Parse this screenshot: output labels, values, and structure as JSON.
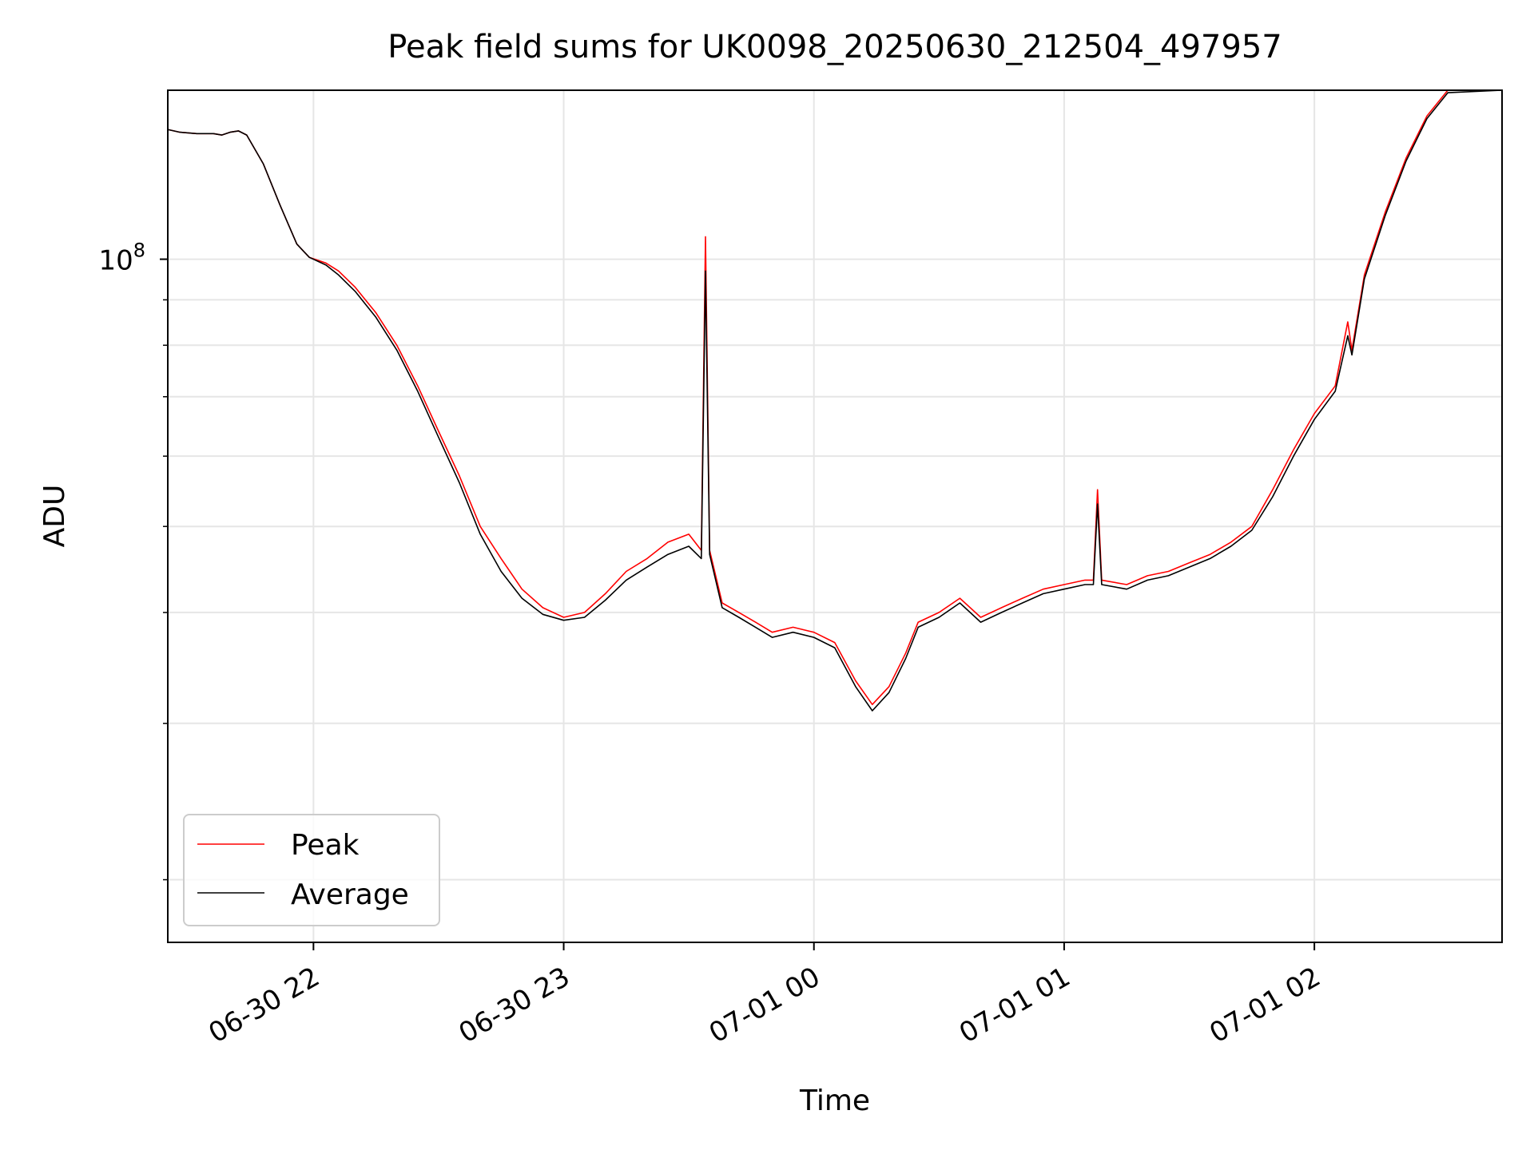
{
  "chart_data": {
    "type": "line",
    "title": "Peak field sums for UK0098_20250630_212504_497957",
    "xlabel": "Time",
    "ylabel": "ADU",
    "y_scale": "log",
    "grid": true,
    "legend_position": "lower-left",
    "x_range": [
      "2025-06-30 21:25:04",
      "2025-07-01 02:45:00"
    ],
    "ylim": [
      17000000,
      155000000
    ],
    "x_ticks": [
      {
        "value": "2025-06-30 22:00",
        "label": "06-30 22"
      },
      {
        "value": "2025-06-30 23:00",
        "label": "06-30 23"
      },
      {
        "value": "2025-07-01 00:00",
        "label": "07-01 00"
      },
      {
        "value": "2025-07-01 01:00",
        "label": "07-01 01"
      },
      {
        "value": "2025-07-01 02:00",
        "label": "07-01 02"
      }
    ],
    "y_ticks": [
      {
        "value": 100000000,
        "label_base": "10",
        "label_exp": "8"
      }
    ],
    "y_minor_ticks": [
      20000000,
      30000000,
      40000000,
      50000000,
      60000000,
      70000000,
      80000000,
      90000000
    ],
    "series": [
      {
        "name": "Peak",
        "color": "#ff0000",
        "points": [
          [
            "2025-06-30 21:25",
            140000000
          ],
          [
            "2025-06-30 21:28",
            139000000
          ],
          [
            "2025-06-30 21:32",
            138500000
          ],
          [
            "2025-06-30 21:36",
            138500000
          ],
          [
            "2025-06-30 21:38",
            138000000
          ],
          [
            "2025-06-30 21:40",
            139000000
          ],
          [
            "2025-06-30 21:42",
            139500000
          ],
          [
            "2025-06-30 21:44",
            138000000
          ],
          [
            "2025-06-30 21:48",
            128000000
          ],
          [
            "2025-06-30 21:52",
            115000000
          ],
          [
            "2025-06-30 21:56",
            104000000
          ],
          [
            "2025-06-30 21:59",
            100500000
          ],
          [
            "2025-06-30 22:03",
            99000000
          ],
          [
            "2025-06-30 22:06",
            97000000
          ],
          [
            "2025-06-30 22:10",
            93000000
          ],
          [
            "2025-06-30 22:15",
            87000000
          ],
          [
            "2025-06-30 22:20",
            80000000
          ],
          [
            "2025-06-30 22:25",
            72000000
          ],
          [
            "2025-06-30 22:30",
            64000000
          ],
          [
            "2025-06-30 22:35",
            57000000
          ],
          [
            "2025-06-30 22:40",
            50000000
          ],
          [
            "2025-06-30 22:45",
            46000000
          ],
          [
            "2025-06-30 22:50",
            42500000
          ],
          [
            "2025-06-30 22:55",
            40500000
          ],
          [
            "2025-06-30 23:00",
            39500000
          ],
          [
            "2025-06-30 23:05",
            40000000
          ],
          [
            "2025-06-30 23:10",
            42000000
          ],
          [
            "2025-06-30 23:15",
            44500000
          ],
          [
            "2025-06-30 23:20",
            46000000
          ],
          [
            "2025-06-30 23:25",
            48000000
          ],
          [
            "2025-06-30 23:30",
            49000000
          ],
          [
            "2025-06-30 23:33",
            47000000
          ],
          [
            "2025-06-30 23:34",
            106000000
          ],
          [
            "2025-06-30 23:35",
            47000000
          ],
          [
            "2025-06-30 23:38",
            41000000
          ],
          [
            "2025-06-30 23:42",
            40000000
          ],
          [
            "2025-06-30 23:46",
            39000000
          ],
          [
            "2025-06-30 23:50",
            38000000
          ],
          [
            "2025-06-30 23:55",
            38500000
          ],
          [
            "2025-07-01 00:00",
            38000000
          ],
          [
            "2025-07-01 00:05",
            37000000
          ],
          [
            "2025-07-01 00:10",
            33500000
          ],
          [
            "2025-07-01 00:14",
            31500000
          ],
          [
            "2025-07-01 00:18",
            33000000
          ],
          [
            "2025-07-01 00:22",
            36000000
          ],
          [
            "2025-07-01 00:25",
            39000000
          ],
          [
            "2025-07-01 00:30",
            40000000
          ],
          [
            "2025-07-01 00:35",
            41500000
          ],
          [
            "2025-07-01 00:40",
            39500000
          ],
          [
            "2025-07-01 00:45",
            40500000
          ],
          [
            "2025-07-01 00:50",
            41500000
          ],
          [
            "2025-07-01 00:55",
            42500000
          ],
          [
            "2025-07-01 01:00",
            43000000
          ],
          [
            "2025-07-01 01:05",
            43500000
          ],
          [
            "2025-07-01 01:07",
            43500000
          ],
          [
            "2025-07-01 01:08",
            55000000
          ],
          [
            "2025-07-01 01:09",
            43500000
          ],
          [
            "2025-07-01 01:15",
            43000000
          ],
          [
            "2025-07-01 01:20",
            44000000
          ],
          [
            "2025-07-01 01:25",
            44500000
          ],
          [
            "2025-07-01 01:30",
            45500000
          ],
          [
            "2025-07-01 01:35",
            46500000
          ],
          [
            "2025-07-01 01:40",
            48000000
          ],
          [
            "2025-07-01 01:45",
            50000000
          ],
          [
            "2025-07-01 01:50",
            55000000
          ],
          [
            "2025-07-01 01:55",
            61000000
          ],
          [
            "2025-07-01 02:00",
            67000000
          ],
          [
            "2025-07-01 02:05",
            72000000
          ],
          [
            "2025-07-01 02:08",
            85000000
          ],
          [
            "2025-07-01 02:09",
            79000000
          ],
          [
            "2025-07-01 02:12",
            96000000
          ],
          [
            "2025-07-01 02:17",
            113000000
          ],
          [
            "2025-07-01 02:22",
            130000000
          ],
          [
            "2025-07-01 02:27",
            145000000
          ],
          [
            "2025-07-01 02:32",
            155000000
          ],
          [
            "2025-07-01 02:45",
            155000000
          ]
        ]
      },
      {
        "name": "Average",
        "color": "#000000",
        "points": [
          [
            "2025-06-30 21:25",
            140000000
          ],
          [
            "2025-06-30 21:28",
            139000000
          ],
          [
            "2025-06-30 21:32",
            138500000
          ],
          [
            "2025-06-30 21:36",
            138500000
          ],
          [
            "2025-06-30 21:38",
            138000000
          ],
          [
            "2025-06-30 21:40",
            139000000
          ],
          [
            "2025-06-30 21:42",
            139500000
          ],
          [
            "2025-06-30 21:44",
            138000000
          ],
          [
            "2025-06-30 21:48",
            128000000
          ],
          [
            "2025-06-30 21:52",
            115000000
          ],
          [
            "2025-06-30 21:56",
            104000000
          ],
          [
            "2025-06-30 21:59",
            100500000
          ],
          [
            "2025-06-30 22:03",
            98500000
          ],
          [
            "2025-06-30 22:06",
            96000000
          ],
          [
            "2025-06-30 22:10",
            92000000
          ],
          [
            "2025-06-30 22:15",
            86000000
          ],
          [
            "2025-06-30 22:20",
            79000000
          ],
          [
            "2025-06-30 22:25",
            71000000
          ],
          [
            "2025-06-30 22:30",
            63000000
          ],
          [
            "2025-06-30 22:35",
            56000000
          ],
          [
            "2025-06-30 22:40",
            49000000
          ],
          [
            "2025-06-30 22:45",
            44500000
          ],
          [
            "2025-06-30 22:50",
            41500000
          ],
          [
            "2025-06-30 22:55",
            39800000
          ],
          [
            "2025-06-30 23:00",
            39200000
          ],
          [
            "2025-06-30 23:05",
            39500000
          ],
          [
            "2025-06-30 23:10",
            41300000
          ],
          [
            "2025-06-30 23:15",
            43500000
          ],
          [
            "2025-06-30 23:20",
            45000000
          ],
          [
            "2025-06-30 23:25",
            46500000
          ],
          [
            "2025-06-30 23:30",
            47500000
          ],
          [
            "2025-06-30 23:33",
            46000000
          ],
          [
            "2025-06-30 23:34",
            97000000
          ],
          [
            "2025-06-30 23:35",
            46500000
          ],
          [
            "2025-06-30 23:38",
            40500000
          ],
          [
            "2025-06-30 23:42",
            39500000
          ],
          [
            "2025-06-30 23:46",
            38500000
          ],
          [
            "2025-06-30 23:50",
            37500000
          ],
          [
            "2025-06-30 23:55",
            38000000
          ],
          [
            "2025-07-01 00:00",
            37500000
          ],
          [
            "2025-07-01 00:05",
            36500000
          ],
          [
            "2025-07-01 00:10",
            33000000
          ],
          [
            "2025-07-01 00:14",
            31000000
          ],
          [
            "2025-07-01 00:18",
            32500000
          ],
          [
            "2025-07-01 00:22",
            35500000
          ],
          [
            "2025-07-01 00:25",
            38500000
          ],
          [
            "2025-07-01 00:30",
            39500000
          ],
          [
            "2025-07-01 00:35",
            41000000
          ],
          [
            "2025-07-01 00:40",
            39000000
          ],
          [
            "2025-07-01 00:45",
            40000000
          ],
          [
            "2025-07-01 00:50",
            41000000
          ],
          [
            "2025-07-01 00:55",
            42000000
          ],
          [
            "2025-07-01 01:00",
            42500000
          ],
          [
            "2025-07-01 01:05",
            43000000
          ],
          [
            "2025-07-01 01:07",
            43000000
          ],
          [
            "2025-07-01 01:08",
            53000000
          ],
          [
            "2025-07-01 01:09",
            43000000
          ],
          [
            "2025-07-01 01:15",
            42500000
          ],
          [
            "2025-07-01 01:20",
            43500000
          ],
          [
            "2025-07-01 01:25",
            44000000
          ],
          [
            "2025-07-01 01:30",
            45000000
          ],
          [
            "2025-07-01 01:35",
            46000000
          ],
          [
            "2025-07-01 01:40",
            47500000
          ],
          [
            "2025-07-01 01:45",
            49500000
          ],
          [
            "2025-07-01 01:50",
            54000000
          ],
          [
            "2025-07-01 01:55",
            60000000
          ],
          [
            "2025-07-01 02:00",
            66000000
          ],
          [
            "2025-07-01 02:05",
            71000000
          ],
          [
            "2025-07-01 02:08",
            82000000
          ],
          [
            "2025-07-01 02:09",
            78000000
          ],
          [
            "2025-07-01 02:12",
            95000000
          ],
          [
            "2025-07-01 02:17",
            112000000
          ],
          [
            "2025-07-01 02:22",
            129000000
          ],
          [
            "2025-07-01 02:27",
            144000000
          ],
          [
            "2025-07-01 02:32",
            154000000
          ],
          [
            "2025-07-01 02:45",
            155000000
          ]
        ]
      }
    ]
  }
}
